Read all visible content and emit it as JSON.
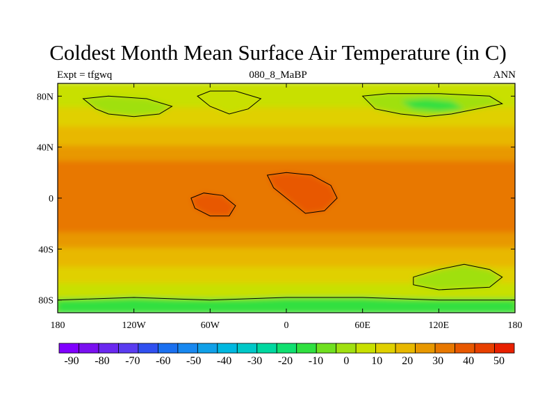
{
  "title": "Coldest Month Mean Surface Air Temperature (in C)",
  "subtitle_left": "Expt = tfgwq",
  "subtitle_center": "080_8_MaBP",
  "subtitle_right": "ANN",
  "x_ticks": [
    {
      "lon": -180,
      "label": "180"
    },
    {
      "lon": -120,
      "label": "120W"
    },
    {
      "lon": -60,
      "label": "60W"
    },
    {
      "lon": 0,
      "label": "0"
    },
    {
      "lon": 60,
      "label": "60E"
    },
    {
      "lon": 120,
      "label": "120E"
    },
    {
      "lon": 180,
      "label": "180"
    }
  ],
  "y_ticks": [
    {
      "lat": 80,
      "label": "80N"
    },
    {
      "lat": 40,
      "label": "40N"
    },
    {
      "lat": 0,
      "label": "0"
    },
    {
      "lat": -40,
      "label": "40S"
    },
    {
      "lat": -80,
      "label": "80S"
    }
  ],
  "colorbar": {
    "colors": [
      "#8000ff",
      "#7a10f0",
      "#6a28f0",
      "#5a3cf0",
      "#3050f0",
      "#1a70f0",
      "#1888f0",
      "#10a0e8",
      "#00b8e0",
      "#00c8c8",
      "#00d8a0",
      "#10e070",
      "#30e040",
      "#70e020",
      "#a0e010",
      "#c8e000",
      "#e0d000",
      "#e8b800",
      "#e89800",
      "#e87800",
      "#e85800",
      "#e84000",
      "#e82000"
    ],
    "labels": [
      "-90",
      "-80",
      "-70",
      "-60",
      "-50",
      "-40",
      "-30",
      "-20",
      "-10",
      "0",
      "10",
      "20",
      "30",
      "40",
      "50"
    ]
  },
  "chart_data": {
    "type": "heatmap",
    "variable": "Coldest Month Mean Surface Air Temperature",
    "units": "C",
    "experiment": "tfgwq",
    "period": "080_8_MaBP",
    "season": "ANN",
    "lon_range": [
      -180,
      180
    ],
    "lat_range": [
      -90,
      90
    ],
    "color_levels": [
      -90,
      -80,
      -70,
      -60,
      -50,
      -40,
      -30,
      -20,
      -10,
      0,
      10,
      20,
      30,
      40,
      50
    ],
    "zonal_bands": [
      {
        "lat_min": 82,
        "lat_max": 90,
        "value": 2
      },
      {
        "lat_min": 70,
        "lat_max": 82,
        "value": 6
      },
      {
        "lat_min": 55,
        "lat_max": 70,
        "value": 12
      },
      {
        "lat_min": 40,
        "lat_max": 55,
        "value": 18
      },
      {
        "lat_min": 28,
        "lat_max": 40,
        "value": 22
      },
      {
        "lat_min": 15,
        "lat_max": 28,
        "value": 26
      },
      {
        "lat_min": -15,
        "lat_max": 15,
        "value": 30
      },
      {
        "lat_min": -28,
        "lat_max": -15,
        "value": 26
      },
      {
        "lat_min": -40,
        "lat_max": -28,
        "value": 22
      },
      {
        "lat_min": -55,
        "lat_max": -40,
        "value": 18
      },
      {
        "lat_min": -68,
        "lat_max": -55,
        "value": 12
      },
      {
        "lat_min": -80,
        "lat_max": -68,
        "value": 4
      },
      {
        "lat_min": -90,
        "lat_max": -80,
        "value": -6
      }
    ],
    "regions": [
      {
        "name": "north-america-cold",
        "value": 0,
        "polygon": [
          [
            -160,
            78
          ],
          [
            -150,
            70
          ],
          [
            -140,
            66
          ],
          [
            -120,
            64
          ],
          [
            -100,
            66
          ],
          [
            -90,
            72
          ],
          [
            -110,
            78
          ],
          [
            -140,
            80
          ]
        ]
      },
      {
        "name": "greenland-cold",
        "value": 2,
        "polygon": [
          [
            -70,
            80
          ],
          [
            -60,
            72
          ],
          [
            -45,
            66
          ],
          [
            -30,
            70
          ],
          [
            -20,
            78
          ],
          [
            -40,
            84
          ],
          [
            -60,
            84
          ]
        ]
      },
      {
        "name": "eurasia-cold",
        "value": -4,
        "polygon": [
          [
            60,
            80
          ],
          [
            70,
            70
          ],
          [
            90,
            66
          ],
          [
            110,
            64
          ],
          [
            130,
            66
          ],
          [
            150,
            70
          ],
          [
            170,
            74
          ],
          [
            160,
            80
          ],
          [
            120,
            82
          ],
          [
            80,
            82
          ]
        ]
      },
      {
        "name": "siberia-cold-core",
        "value": -12,
        "polygon": [
          [
            90,
            76
          ],
          [
            100,
            70
          ],
          [
            120,
            68
          ],
          [
            140,
            70
          ],
          [
            130,
            76
          ],
          [
            110,
            78
          ]
        ]
      },
      {
        "name": "africa-hot",
        "value": 34,
        "polygon": [
          [
            -15,
            18
          ],
          [
            0,
            20
          ],
          [
            20,
            18
          ],
          [
            35,
            10
          ],
          [
            40,
            0
          ],
          [
            30,
            -10
          ],
          [
            15,
            -12
          ],
          [
            0,
            0
          ],
          [
            -10,
            8
          ]
        ]
      },
      {
        "name": "south-america-hot",
        "value": 34,
        "polygon": [
          [
            -75,
            0
          ],
          [
            -65,
            4
          ],
          [
            -50,
            2
          ],
          [
            -40,
            -6
          ],
          [
            -45,
            -14
          ],
          [
            -60,
            -14
          ],
          [
            -72,
            -8
          ]
        ]
      },
      {
        "name": "antarctica-cold",
        "value": -14,
        "polygon": [
          [
            -180,
            -80
          ],
          [
            -120,
            -78
          ],
          [
            -60,
            -80
          ],
          [
            0,
            -78
          ],
          [
            60,
            -78
          ],
          [
            120,
            -80
          ],
          [
            180,
            -80
          ],
          [
            180,
            -90
          ],
          [
            -180,
            -90
          ]
        ]
      },
      {
        "name": "australia-antarctica-cold",
        "value": -2,
        "polygon": [
          [
            100,
            -62
          ],
          [
            120,
            -56
          ],
          [
            140,
            -52
          ],
          [
            160,
            -56
          ],
          [
            170,
            -62
          ],
          [
            160,
            -70
          ],
          [
            120,
            -72
          ],
          [
            100,
            -68
          ]
        ]
      }
    ]
  }
}
